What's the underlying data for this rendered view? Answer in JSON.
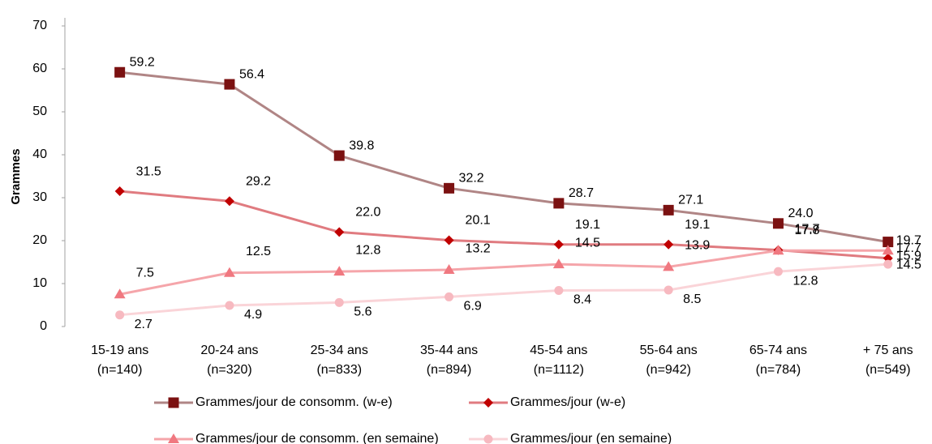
{
  "chart_data": {
    "type": "line",
    "y_label": "Grammes",
    "categories": [
      [
        "15-19 ans",
        "(n=140)"
      ],
      [
        "20-24 ans",
        "(n=320)"
      ],
      [
        "25-34 ans",
        "(n=833)"
      ],
      [
        "35-44 ans",
        "(n=894)"
      ],
      [
        "45-54 ans",
        "(n=1112)"
      ],
      [
        "55-64 ans",
        "(n=942)"
      ],
      [
        "65-74 ans",
        "(n=784)"
      ],
      [
        "+ 75 ans",
        "(n=549)"
      ]
    ],
    "ylim": [
      0,
      70
    ],
    "yticks": [
      0,
      10,
      20,
      30,
      40,
      50,
      60,
      70
    ],
    "grid": false,
    "legend": "bottom",
    "series": [
      {
        "name": "Grammes/jour de consomm. (w-e)",
        "marker": "square",
        "color": "#7b1111",
        "line_color": "#b08585",
        "values": [
          59.2,
          56.4,
          39.8,
          32.2,
          28.7,
          27.1,
          24.0,
          19.7
        ],
        "value_labels": [
          "59.2",
          "56.4",
          "39.8",
          "32.2",
          "28.7",
          "27.1",
          "24.0",
          "19.7"
        ]
      },
      {
        "name": "Grammes/jour (w-e)",
        "marker": "diamond",
        "color": "#c00000",
        "line_color": "#e07b80",
        "values": [
          31.5,
          29.2,
          22.0,
          20.1,
          19.1,
          19.1,
          17.8,
          15.9
        ],
        "value_labels": [
          "31.5",
          "29.2",
          "22.0",
          "20.1",
          "19.1",
          "19.1",
          "17.8",
          "15.9"
        ]
      },
      {
        "name": "Grammes/jour de consomm. (en semaine)",
        "marker": "triangle",
        "color": "#f07880",
        "line_color": "#f5a5aa",
        "values": [
          7.5,
          12.5,
          12.8,
          13.2,
          14.5,
          13.9,
          17.7,
          17.7
        ],
        "value_labels": [
          "7.5",
          "12.5",
          "12.8",
          "13.2",
          "14.5",
          "13.9",
          "17.7",
          "17.7"
        ]
      },
      {
        "name": "Grammes/jour (en semaine)",
        "marker": "circle",
        "color": "#f7b9c0",
        "line_color": "#fad4d8",
        "values": [
          2.7,
          4.9,
          5.6,
          6.9,
          8.4,
          8.5,
          12.8,
          14.5
        ],
        "value_labels": [
          "2.7",
          "4.9",
          "5.6",
          "6.9",
          "8.4",
          "8.5",
          "12.8",
          "14.5"
        ]
      }
    ]
  }
}
